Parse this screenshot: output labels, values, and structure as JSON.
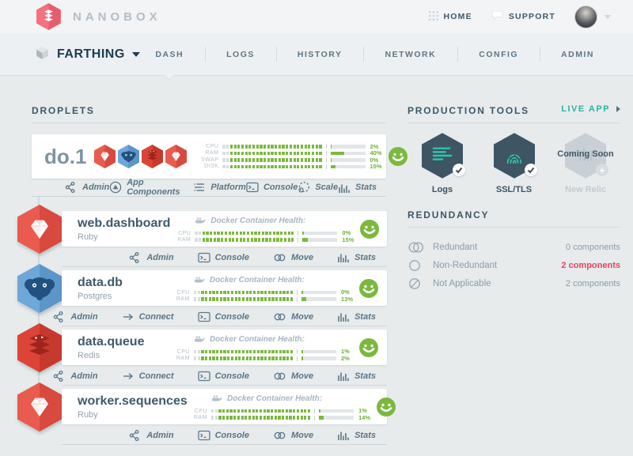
{
  "brand": {
    "name": "NANOBOX"
  },
  "top_nav": {
    "home": "HOME",
    "support": "SUPPORT"
  },
  "app_nav": {
    "app_name": "FARTHING",
    "tabs": [
      {
        "label": "DASH",
        "active": true
      },
      {
        "label": "LOGS",
        "active": false
      },
      {
        "label": "HISTORY",
        "active": false
      },
      {
        "label": "NETWORK",
        "active": false
      },
      {
        "label": "CONFIG",
        "active": false
      },
      {
        "label": "ADMIN",
        "active": false
      }
    ]
  },
  "droplets": {
    "section_title": "DROPLETS",
    "docker_health_label": "Docker Container Health:",
    "server": {
      "name": "do.1",
      "component_icons": [
        "ruby",
        "postgres",
        "redis",
        "ruby"
      ],
      "meters": [
        {
          "label": "CPU",
          "value": "2%",
          "pct": 2
        },
        {
          "label": "RAM",
          "value": "40%",
          "pct": 40
        },
        {
          "label": "SWAP",
          "value": "0%",
          "pct": 0
        },
        {
          "label": "DISK",
          "value": "15%",
          "pct": 15
        }
      ],
      "actions": [
        {
          "label": "Admin",
          "icon": "admin"
        },
        {
          "label": "App Components",
          "icon": "components"
        },
        {
          "label": "Platform",
          "icon": "platform"
        },
        {
          "label": "Console",
          "icon": "console"
        },
        {
          "label": "Scale",
          "icon": "scale"
        },
        {
          "label": "Stats",
          "icon": "stats"
        }
      ]
    },
    "components": [
      {
        "name": "web.dashboard",
        "type": "Ruby",
        "icon": "ruby",
        "meters": [
          {
            "label": "CPU",
            "value": "0%",
            "pct": 0
          },
          {
            "label": "RAM",
            "value": "15%",
            "pct": 15
          }
        ],
        "actions": [
          {
            "label": "Admin",
            "icon": "admin"
          },
          {
            "label": "Console",
            "icon": "console"
          },
          {
            "label": "Move",
            "icon": "move"
          },
          {
            "label": "Stats",
            "icon": "stats"
          }
        ]
      },
      {
        "name": "data.db",
        "type": "Postgres",
        "icon": "postgres",
        "meters": [
          {
            "label": "CPU",
            "value": "0%",
            "pct": 0
          },
          {
            "label": "RAM",
            "value": "13%",
            "pct": 13
          }
        ],
        "actions": [
          {
            "label": "Admin",
            "icon": "admin"
          },
          {
            "label": "Connect",
            "icon": "connect"
          },
          {
            "label": "Console",
            "icon": "console"
          },
          {
            "label": "Move",
            "icon": "move"
          },
          {
            "label": "Stats",
            "icon": "stats"
          }
        ]
      },
      {
        "name": "data.queue",
        "type": "Redis",
        "icon": "redis",
        "meters": [
          {
            "label": "CPU",
            "value": "1%",
            "pct": 1
          },
          {
            "label": "RAM",
            "value": "2%",
            "pct": 2
          }
        ],
        "actions": [
          {
            "label": "Admin",
            "icon": "admin"
          },
          {
            "label": "Connect",
            "icon": "connect"
          },
          {
            "label": "Console",
            "icon": "console"
          },
          {
            "label": "Move",
            "icon": "move"
          },
          {
            "label": "Stats",
            "icon": "stats"
          }
        ]
      },
      {
        "name": "worker.sequences",
        "type": "Ruby",
        "icon": "ruby",
        "meters": [
          {
            "label": "CPU",
            "value": "1%",
            "pct": 1
          },
          {
            "label": "RAM",
            "value": "14%",
            "pct": 14
          }
        ],
        "actions": [
          {
            "label": "Admin",
            "icon": "admin"
          },
          {
            "label": "Console",
            "icon": "console"
          },
          {
            "label": "Move",
            "icon": "move"
          },
          {
            "label": "Stats",
            "icon": "stats"
          }
        ]
      }
    ]
  },
  "production_tools": {
    "section_title": "PRODUCTION TOOLS",
    "live_app_label": "LIVE APP",
    "tools": [
      {
        "label": "Logs",
        "icon": "logs",
        "status": "enabled"
      },
      {
        "label": "SSL/TLS",
        "icon": "ssl",
        "status": "enabled"
      },
      {
        "label": "New Relic",
        "icon": "newrelic",
        "status": "coming_soon",
        "overlay": "Coming Soon"
      }
    ]
  },
  "redundancy": {
    "section_title": "REDUNDANCY",
    "rows": [
      {
        "label": "Redundant",
        "count": "0 components",
        "icon": "redundant",
        "highlight": false
      },
      {
        "label": "Non-Redundant",
        "count": "2 components",
        "icon": "non-redundant",
        "highlight": true
      },
      {
        "label": "Not Applicable",
        "count": "2 components",
        "icon": "not-applicable",
        "highlight": false
      }
    ]
  },
  "colors": {
    "accent_green": "#7cb93e",
    "accent_teal": "#2fc4ad",
    "alert_red": "#ee3f63",
    "brand_pink": "#f0616f",
    "slate": "#3e5563"
  }
}
